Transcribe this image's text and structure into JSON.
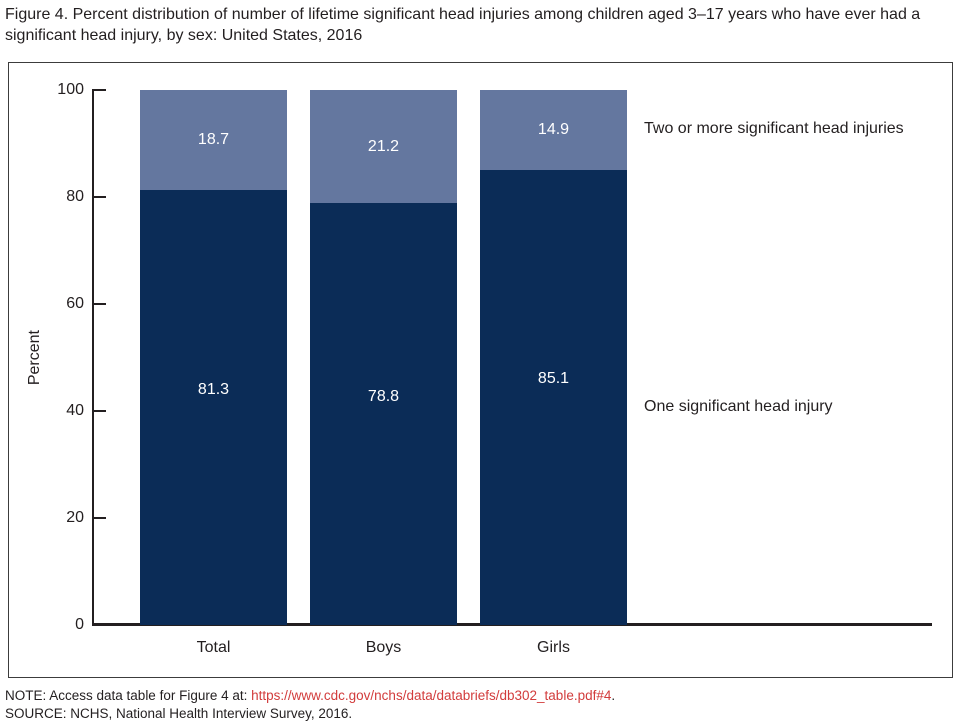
{
  "title": "Figure 4. Percent distribution of number of lifetime significant head injuries among children aged 3–17 years who have ever had a significant head injury, by sex: United States, 2016",
  "chart_data": {
    "type": "bar",
    "subtype": "stacked-vertical",
    "categories": [
      "Total",
      "Boys",
      "Girls"
    ],
    "series": [
      {
        "name": "One significant head injury",
        "color": "#0b2c57",
        "values": [
          81.3,
          78.8,
          85.1
        ]
      },
      {
        "name": "Two or more significant head injuries",
        "color": "#64779f",
        "values": [
          18.7,
          21.2,
          14.9
        ]
      }
    ],
    "ylabel": "Percent",
    "ylim": [
      0,
      100
    ],
    "yticks": [
      0,
      20,
      40,
      60,
      80,
      100
    ],
    "grid": false,
    "legend_position": "right-annotations",
    "value_label_color": "#ffffff"
  },
  "notes": {
    "note_prefix": "NOTE: Access data table for Figure 4 at: ",
    "note_link": "https://www.cdc.gov/nchs/data/databriefs/db302_table.pdf#4",
    "note_suffix": ".",
    "source": "SOURCE: NCHS, National Health Interview Survey, 2016."
  },
  "colors": {
    "axis": "#231f20",
    "link_red": "#d23c3c",
    "bar_dark": "#0b2c57",
    "bar_light": "#64779f"
  }
}
